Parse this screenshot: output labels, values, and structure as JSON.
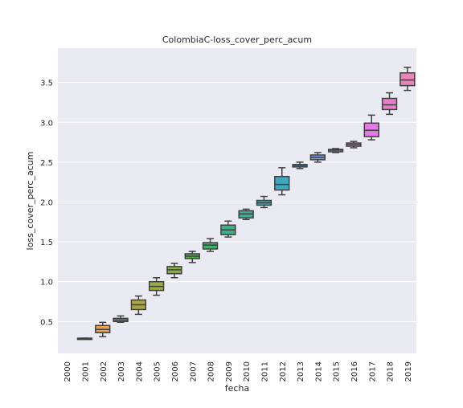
{
  "chart_data": {
    "type": "box",
    "title": "ColombiaC-loss_cover_perc_acum",
    "xlabel": "fecha",
    "ylabel": "loss_cover_perc_acum",
    "ylim": [
      0.1,
      3.93
    ],
    "yticks": [
      "0.5",
      "1.0",
      "1.5",
      "2.0",
      "2.5",
      "3.0",
      "3.5"
    ],
    "ytick_values": [
      0.5,
      1.0,
      1.5,
      2.0,
      2.5,
      3.0,
      3.5
    ],
    "grid": true,
    "categories": [
      "2000",
      "2001",
      "2002",
      "2003",
      "2004",
      "2005",
      "2006",
      "2007",
      "2008",
      "2009",
      "2010",
      "2011",
      "2012",
      "2013",
      "2014",
      "2015",
      "2016",
      "2017",
      "2018",
      "2019"
    ],
    "boxes": [
      null,
      {
        "min": 0.29,
        "q1": 0.29,
        "median": 0.29,
        "q3": 0.29,
        "max": 0.29,
        "color": "#c0c0c0"
      },
      {
        "min": 0.31,
        "q1": 0.36,
        "median": 0.4,
        "q3": 0.45,
        "max": 0.49,
        "color": "#e5a04d"
      },
      {
        "min": 0.49,
        "q1": 0.5,
        "median": 0.52,
        "q3": 0.54,
        "max": 0.57,
        "color": "#c9a84c"
      },
      {
        "min": 0.59,
        "q1": 0.65,
        "median": 0.71,
        "q3": 0.77,
        "max": 0.82,
        "color": "#a9a645"
      },
      {
        "min": 0.83,
        "q1": 0.89,
        "median": 0.94,
        "q3": 1.0,
        "max": 1.05,
        "color": "#9aaa45"
      },
      {
        "min": 1.05,
        "q1": 1.1,
        "median": 1.15,
        "q3": 1.19,
        "max": 1.23,
        "color": "#82ae45"
      },
      {
        "min": 1.24,
        "q1": 1.29,
        "median": 1.32,
        "q3": 1.35,
        "max": 1.38,
        "color": "#52b04a"
      },
      {
        "min": 1.38,
        "q1": 1.41,
        "median": 1.46,
        "q3": 1.49,
        "max": 1.54,
        "color": "#3bb16b"
      },
      {
        "min": 1.56,
        "q1": 1.59,
        "median": 1.65,
        "q3": 1.71,
        "max": 1.76,
        "color": "#3cb087"
      },
      {
        "min": 1.78,
        "q1": 1.8,
        "median": 1.85,
        "q3": 1.89,
        "max": 1.91,
        "color": "#3eae99"
      },
      {
        "min": 1.93,
        "q1": 1.96,
        "median": 1.99,
        "q3": 2.02,
        "max": 2.07,
        "color": "#3faaa9"
      },
      {
        "min": 2.09,
        "q1": 2.15,
        "median": 2.22,
        "q3": 2.32,
        "max": 2.43,
        "color": "#40a8bd"
      },
      {
        "min": 2.42,
        "q1": 2.44,
        "median": 2.46,
        "q3": 2.47,
        "max": 2.5,
        "color": "#479ed9"
      },
      {
        "min": 2.5,
        "q1": 2.53,
        "median": 2.56,
        "q3": 2.59,
        "max": 2.62,
        "color": "#7f9ae6"
      },
      {
        "min": 2.62,
        "q1": 2.63,
        "median": 2.65,
        "q3": 2.66,
        "max": 2.67,
        "color": "#a893e8"
      },
      {
        "min": 2.68,
        "q1": 2.7,
        "median": 2.72,
        "q3": 2.74,
        "max": 2.76,
        "color": "#c887e6"
      },
      {
        "min": 2.78,
        "q1": 2.82,
        "median": 2.9,
        "q3": 2.99,
        "max": 3.09,
        "color": "#e27be3"
      },
      {
        "min": 3.1,
        "q1": 3.16,
        "median": 3.22,
        "q3": 3.3,
        "max": 3.37,
        "color": "#e67fc7"
      },
      {
        "min": 3.4,
        "q1": 3.46,
        "median": 3.53,
        "q3": 3.62,
        "max": 3.69,
        "color": "#e685b8"
      }
    ]
  }
}
